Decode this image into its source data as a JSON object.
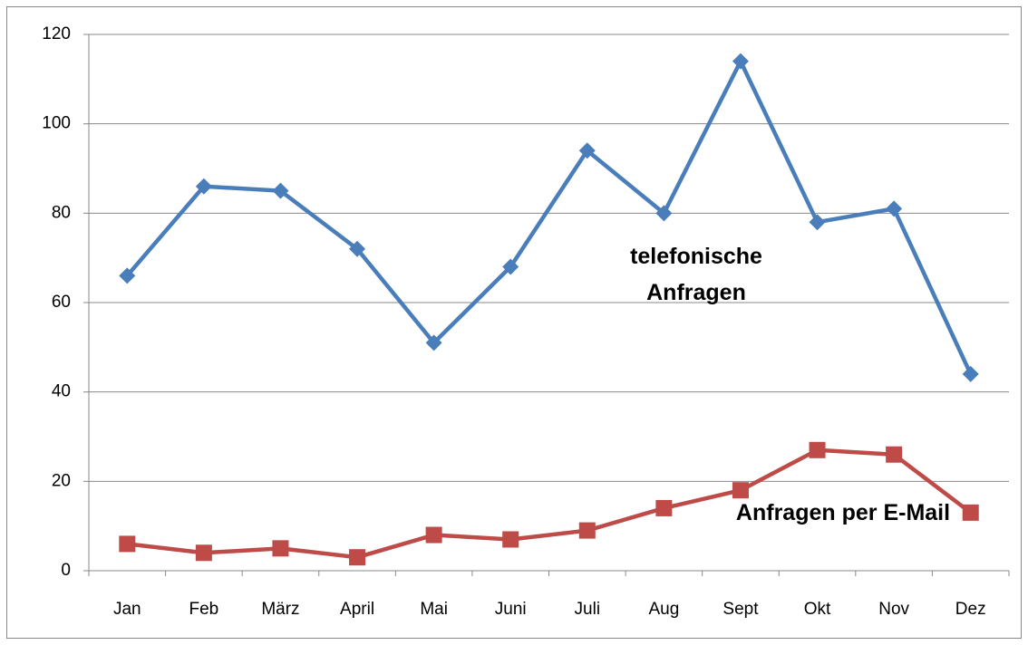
{
  "chart_data": {
    "type": "line",
    "categories": [
      "Jan",
      "Feb",
      "März",
      "April",
      "Mai",
      "Juni",
      "Juli",
      "Aug",
      "Sept",
      "Okt",
      "Nov",
      "Dez"
    ],
    "series": [
      {
        "name": "telefonische Anfragen",
        "color": "#4a7ebb",
        "marker": "diamond",
        "values": [
          66,
          86,
          85,
          72,
          51,
          68,
          94,
          80,
          114,
          78,
          81,
          44
        ]
      },
      {
        "name": "Anfragen per E-Mail",
        "color": "#be4b48",
        "marker": "square",
        "values": [
          6,
          4,
          5,
          3,
          8,
          7,
          9,
          14,
          18,
          27,
          26,
          13
        ]
      }
    ],
    "ylim": [
      0,
      120
    ],
    "yticks": [
      0,
      20,
      40,
      60,
      80,
      100,
      120
    ],
    "grid": true
  }
}
